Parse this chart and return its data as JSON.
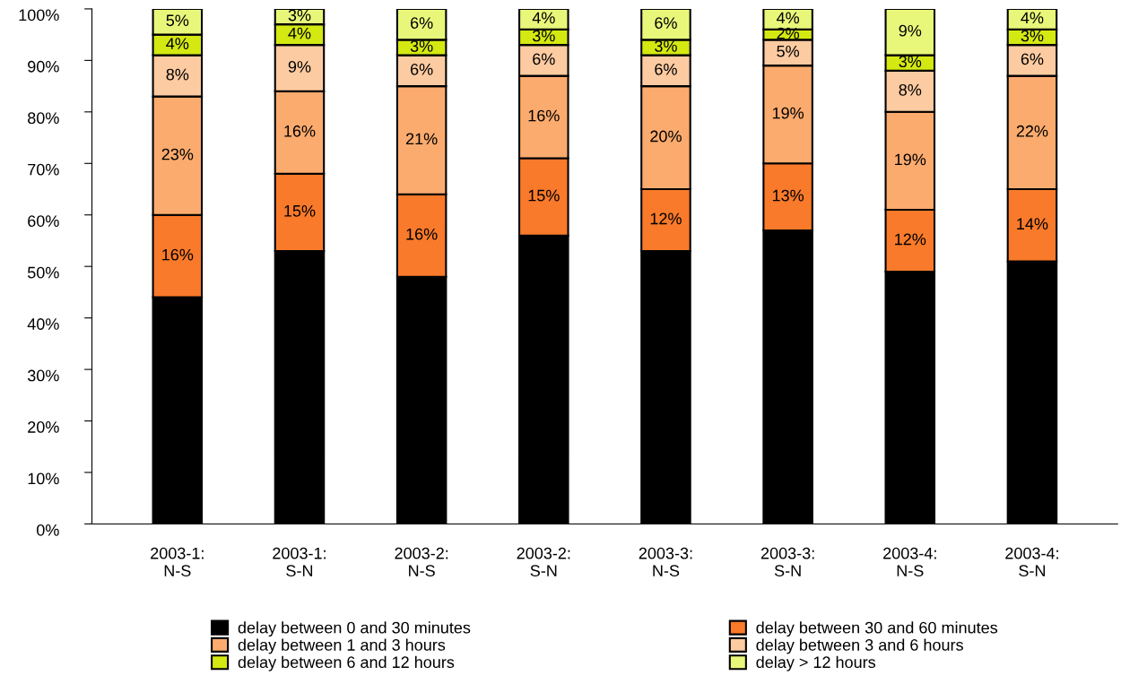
{
  "chart_data": {
    "type": "bar",
    "stacked": true,
    "categories": [
      "2003-1:\nN-S",
      "2003-1:\nS-N",
      "2003-2:\nN-S",
      "2003-2:\nS-N",
      "2003-3:\nN-S",
      "2003-3:\nS-N",
      "2003-4:\nN-S",
      "2003-4:\nS-N"
    ],
    "ylim": [
      0,
      100
    ],
    "yticks": [
      {
        "value": 0,
        "label": "0%"
      },
      {
        "value": 10,
        "label": "10%"
      },
      {
        "value": 20,
        "label": "20%"
      },
      {
        "value": 30,
        "label": "30%"
      },
      {
        "value": 40,
        "label": "40%"
      },
      {
        "value": 50,
        "label": "50%"
      },
      {
        "value": 60,
        "label": "60%"
      },
      {
        "value": 70,
        "label": "70%"
      },
      {
        "value": 80,
        "label": "80%"
      },
      {
        "value": 90,
        "label": "90%"
      },
      {
        "value": 100,
        "label": "100%"
      }
    ],
    "grid": false,
    "legend": "bottom",
    "series": [
      {
        "name": "delay between 0 and 30 minutes",
        "color": "#000000",
        "values": [
          44,
          53,
          48,
          56,
          53,
          57,
          49,
          51
        ]
      },
      {
        "name": "delay between 30 and 60 minutes",
        "color": "#f97a2a",
        "values": [
          16,
          15,
          16,
          15,
          12,
          13,
          12,
          14
        ],
        "value_labels": [
          "16%",
          "15%",
          "16%",
          "15%",
          "12%",
          "13%",
          "12%",
          "14%"
        ]
      },
      {
        "name": "delay between 1 and 3 hours",
        "color": "#fbab6e",
        "values": [
          23,
          16,
          21,
          16,
          20,
          19,
          19,
          22
        ],
        "value_labels": [
          "23%",
          "16%",
          "21%",
          "16%",
          "20%",
          "19%",
          "19%",
          "22%"
        ]
      },
      {
        "name": "delay between 3 and 6 hours",
        "color": "#fdcba1",
        "values": [
          8,
          9,
          6,
          6,
          6,
          5,
          8,
          6
        ],
        "value_labels": [
          "8%",
          "9%",
          "6%",
          "6%",
          "6%",
          "5%",
          "8%",
          "6%"
        ]
      },
      {
        "name": "delay between 6 and 12 hours",
        "color": "#d4e812",
        "values": [
          4,
          4,
          3,
          3,
          3,
          2,
          3,
          3
        ],
        "value_labels": [
          "4%",
          "4%",
          "3%",
          "3%",
          "3%",
          "2%",
          "3%",
          "3%"
        ]
      },
      {
        "name": "delay > 12 hours",
        "color": "#e8f77a",
        "values": [
          5,
          3,
          6,
          4,
          6,
          4,
          9,
          4
        ],
        "value_labels": [
          "5%",
          "3%",
          "6%",
          "4%",
          "6%",
          "4%",
          "9%",
          "4%"
        ]
      }
    ]
  }
}
